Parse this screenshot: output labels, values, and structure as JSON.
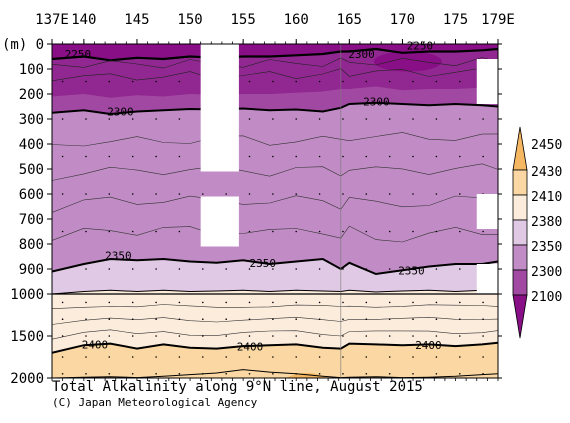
{
  "chart_data": {
    "type": "contour",
    "title": "Total Alkalinity along 9°N line, August 2015",
    "credit": "(C) Japan Meteorological Agency",
    "x_axis": {
      "label": "",
      "tick_labels": [
        "137E",
        "140",
        "145",
        "150",
        "155",
        "160",
        "165",
        "170",
        "175",
        "179E"
      ],
      "tick_values": [
        137,
        140,
        145,
        150,
        155,
        160,
        165,
        170,
        175,
        179
      ],
      "range": [
        137,
        179
      ]
    },
    "y_axis": {
      "label": "(m)",
      "tick_labels": [
        "0",
        "100",
        "200",
        "300",
        "400",
        "500",
        "600",
        "700",
        "800",
        "900",
        "1000",
        "1500",
        "2000"
      ],
      "tick_values": [
        0,
        100,
        200,
        300,
        400,
        500,
        600,
        700,
        800,
        900,
        1000,
        1500,
        2000
      ],
      "range": [
        0,
        2000
      ],
      "scale_note": "linear 0-1000 m, compressed 1000-2000 m"
    },
    "colorbar": {
      "levels": [
        2100,
        2300,
        2350,
        2380,
        2410,
        2430,
        2450
      ],
      "labels": [
        "2100",
        "2300",
        "2350",
        "2380",
        "2410",
        "2430",
        "2450"
      ],
      "colors": [
        "#880f85",
        "#a149a2",
        "#c18cc5",
        "#e0c9e4",
        "#fcecdc",
        "#fbd8a3",
        "#f5b761"
      ],
      "orientation": "vertical",
      "placement": "right"
    },
    "contour_lines": [
      {
        "value": 2250,
        "label": "2250"
      },
      {
        "value": 2300,
        "label": "2300"
      },
      {
        "value": 2350,
        "label": "2350"
      },
      {
        "value": 2400,
        "label": "2400"
      }
    ],
    "contour_labels": [
      {
        "text": "2250",
        "lon": 138.2,
        "depth": 40
      },
      {
        "text": "2300",
        "lon": 164.9,
        "depth": 40
      },
      {
        "text": "2250",
        "lon": 170.4,
        "depth": 5
      },
      {
        "text": "2300",
        "lon": 142.2,
        "depth": 270
      },
      {
        "text": "2300",
        "lon": 166.3,
        "depth": 230
      },
      {
        "text": "2350",
        "lon": 142.0,
        "depth": 845
      },
      {
        "text": "2350",
        "lon": 155.6,
        "depth": 875
      },
      {
        "text": "2350",
        "lon": 169.6,
        "depth": 905
      },
      {
        "text": "2400",
        "lon": 139.8,
        "depth": 1600
      },
      {
        "text": "2400",
        "lon": 154.4,
        "depth": 1625
      },
      {
        "text": "2400",
        "lon": 171.2,
        "depth": 1610
      }
    ],
    "isolines_by_depth": {
      "lon": [
        137,
        140,
        142.5,
        145,
        147.5,
        150,
        152.5,
        155,
        157.5,
        160,
        162.5,
        164.2,
        165,
        167.5,
        170,
        172.5,
        175,
        177.5,
        179
      ],
      "d2300": [
        275,
        265,
        280,
        270,
        265,
        260,
        262,
        258,
        265,
        262,
        270,
        255,
        240,
        235,
        240,
        245,
        240,
        245,
        250
      ],
      "d2350": [
        910,
        880,
        860,
        865,
        860,
        870,
        875,
        865,
        880,
        870,
        860,
        900,
        875,
        920,
        905,
        890,
        880,
        880,
        870
      ],
      "d2380": [
        1000,
        990,
        985,
        990,
        985,
        990,
        988,
        985,
        990,
        985,
        988,
        990,
        985,
        992,
        988,
        985,
        990,
        985,
        990
      ],
      "d2400": [
        1700,
        1610,
        1590,
        1650,
        1600,
        1640,
        1650,
        1620,
        1610,
        1600,
        1640,
        1650,
        1590,
        1600,
        1610,
        1600,
        1620,
        1600,
        1580
      ],
      "d2430": [
        2000,
        1990,
        1985,
        1995,
        1980,
        1960,
        1940,
        1900,
        1930,
        1950,
        1980,
        1995,
        1990,
        1985,
        1995,
        1990,
        1980,
        1960,
        1950
      ]
    },
    "missing_data_regions": [
      {
        "lon": [
          151.0,
          154.6
        ],
        "depth": [
          0,
          510
        ]
      },
      {
        "lon": [
          151.0,
          154.6
        ],
        "depth": [
          610,
          810
        ]
      },
      {
        "lon": [
          177.0,
          179.0
        ],
        "depth": [
          60,
          240
        ]
      },
      {
        "lon": [
          177.0,
          179.0
        ],
        "depth": [
          600,
          740
        ]
      },
      {
        "lon": [
          177.0,
          179.0
        ],
        "depth": [
          880,
          1000
        ]
      }
    ],
    "grid": false
  }
}
